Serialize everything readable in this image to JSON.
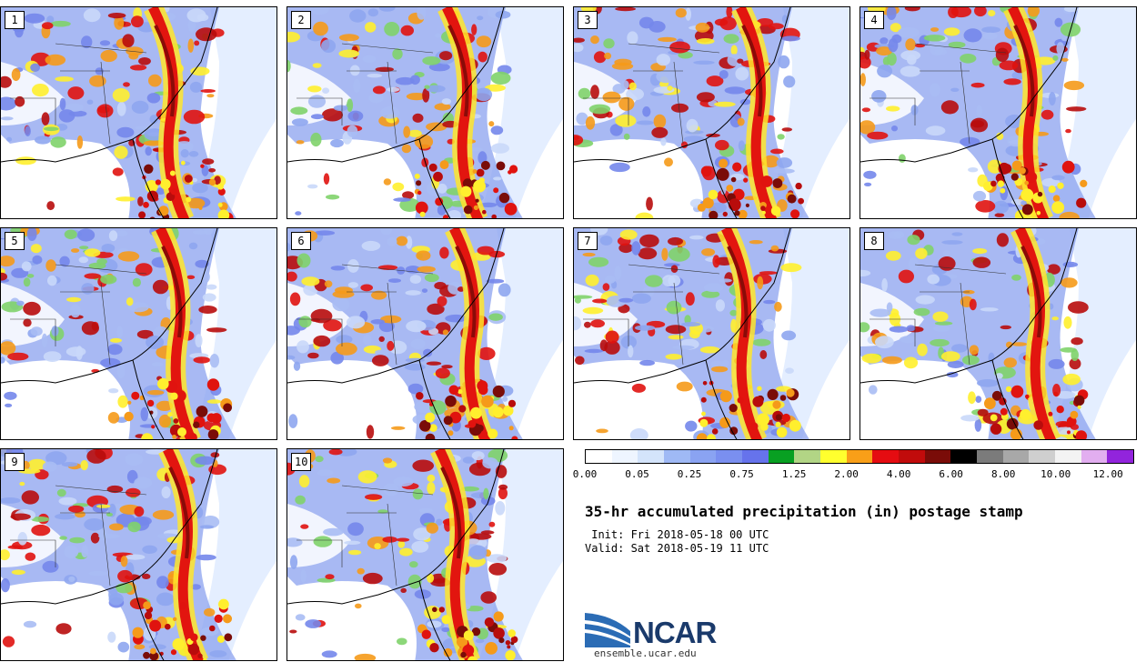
{
  "panels": [
    {
      "label": "1"
    },
    {
      "label": "2"
    },
    {
      "label": "3"
    },
    {
      "label": "4"
    },
    {
      "label": "5"
    },
    {
      "label": "6"
    },
    {
      "label": "7"
    },
    {
      "label": "8"
    },
    {
      "label": "9"
    },
    {
      "label": "10"
    }
  ],
  "colorbar": {
    "colors": [
      "#ffffff",
      "#eef5ff",
      "#d4e4fb",
      "#9fb9f5",
      "#8aa3f2",
      "#7a8ff0",
      "#6673ec",
      "#08a022",
      "#b2d585",
      "#ffff2e",
      "#f99f18",
      "#e50c11",
      "#c10b0b",
      "#7a0c08",
      "#000000",
      "#7b7b7b",
      "#a8a8a8",
      "#cfcfcf",
      "#f3f3f3",
      "#e2aef0",
      "#9224dc"
    ],
    "tick_labels": [
      "0.00",
      "0.05",
      "0.25",
      "0.75",
      "1.25",
      "2.00",
      "4.00",
      "6.00",
      "8.00",
      "10.00",
      "12.00"
    ]
  },
  "title": "35-hr accumulated precipitation (in) postage stamp",
  "init": " Init: Fri 2018-05-18 00 UTC",
  "valid": "Valid: Sat 2018-05-19 11 UTC",
  "logo": {
    "text": "NCAR",
    "url": "ensemble.ucar.edu"
  }
}
